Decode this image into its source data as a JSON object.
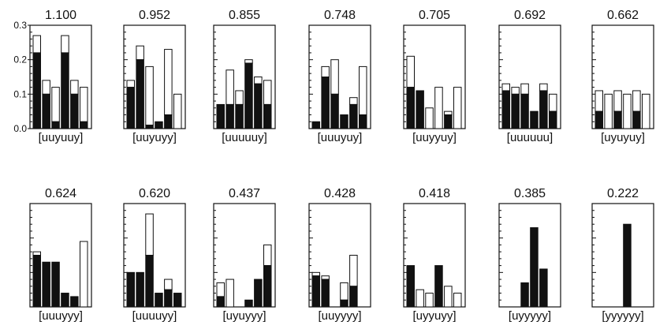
{
  "chart_data": {
    "type": "bar",
    "ylim": [
      0,
      0.3
    ],
    "yticks": [
      "0.0",
      "0.1",
      "0.2",
      "0.3"
    ],
    "grid": false,
    "legend": "none",
    "colors": {
      "filled": "#111111",
      "open": "#ffffff",
      "outline": "#111111"
    },
    "panels": [
      {
        "score": "1.100",
        "pattern": "[uuyuuy]",
        "filled": [
          0.22,
          0.1,
          0.02,
          0.22,
          0.1,
          0.02
        ],
        "total": [
          0.27,
          0.14,
          0.12,
          0.27,
          0.14,
          0.12
        ]
      },
      {
        "score": "0.952",
        "pattern": "[uuyuyy]",
        "filled": [
          0.12,
          0.2,
          0.01,
          0.02,
          0.04,
          0.0
        ],
        "total": [
          0.14,
          0.24,
          0.18,
          0.02,
          0.23,
          0.1
        ]
      },
      {
        "score": "0.855",
        "pattern": "[uuuuuy]",
        "filled": [
          0.07,
          0.07,
          0.07,
          0.19,
          0.13,
          0.07
        ],
        "total": [
          0.07,
          0.17,
          0.11,
          0.2,
          0.15,
          0.14
        ]
      },
      {
        "score": "0.748",
        "pattern": "[uuuyuy]",
        "filled": [
          0.02,
          0.15,
          0.1,
          0.04,
          0.07,
          0.04
        ],
        "total": [
          0.02,
          0.18,
          0.2,
          0.04,
          0.09,
          0.18
        ]
      },
      {
        "score": "0.705",
        "pattern": "[uuyyuy]",
        "filled": [
          0.12,
          0.11,
          0.0,
          0.0,
          0.04,
          0.0
        ],
        "total": [
          0.21,
          0.11,
          0.06,
          0.12,
          0.05,
          0.12
        ]
      },
      {
        "score": "0.692",
        "pattern": "[uuuuuu]",
        "filled": [
          0.11,
          0.1,
          0.1,
          0.05,
          0.11,
          0.05
        ],
        "total": [
          0.13,
          0.12,
          0.13,
          0.05,
          0.13,
          0.1
        ]
      },
      {
        "score": "0.662",
        "pattern": "[uyuyuy]",
        "filled": [
          0.05,
          0.0,
          0.05,
          0.0,
          0.05,
          0.0
        ],
        "total": [
          0.11,
          0.1,
          0.11,
          0.1,
          0.11,
          0.1
        ]
      },
      {
        "score": "0.624",
        "pattern": "[uuuyyy]",
        "filled": [
          0.15,
          0.13,
          0.13,
          0.04,
          0.03,
          0.0
        ],
        "total": [
          0.16,
          0.13,
          0.13,
          0.04,
          0.03,
          0.19
        ]
      },
      {
        "score": "0.620",
        "pattern": "[uuuuyy]",
        "filled": [
          0.1,
          0.1,
          0.15,
          0.04,
          0.05,
          0.04
        ],
        "total": [
          0.1,
          0.1,
          0.27,
          0.04,
          0.08,
          0.04
        ]
      },
      {
        "score": "0.437",
        "pattern": "[uyuyyy]",
        "filled": [
          0.03,
          0.0,
          0.0,
          0.02,
          0.08,
          0.12
        ],
        "total": [
          0.07,
          0.08,
          0.0,
          0.02,
          0.08,
          0.18
        ]
      },
      {
        "score": "0.428",
        "pattern": "[uuyyyy]",
        "filled": [
          0.09,
          0.08,
          0.0,
          0.02,
          0.06,
          0.0
        ],
        "total": [
          0.1,
          0.09,
          0.0,
          0.07,
          0.15,
          0.0
        ]
      },
      {
        "score": "0.418",
        "pattern": "[uyyuyy]",
        "filled": [
          0.12,
          0.0,
          0.0,
          0.12,
          0.0,
          0.0
        ],
        "total": [
          0.12,
          0.05,
          0.04,
          0.12,
          0.06,
          0.04
        ]
      },
      {
        "score": "0.385",
        "pattern": "[uyyyyy]",
        "filled": [
          0.0,
          0.0,
          0.07,
          0.23,
          0.11,
          0.0
        ],
        "total": [
          0.0,
          0.0,
          0.07,
          0.23,
          0.11,
          0.0
        ]
      },
      {
        "score": "0.222",
        "pattern": "[yyyyyy]",
        "filled": [
          0.0,
          0.0,
          0.0,
          0.24,
          0.0,
          0.0
        ],
        "total": [
          0.0,
          0.0,
          0.0,
          0.24,
          0.0,
          0.0
        ]
      }
    ]
  }
}
